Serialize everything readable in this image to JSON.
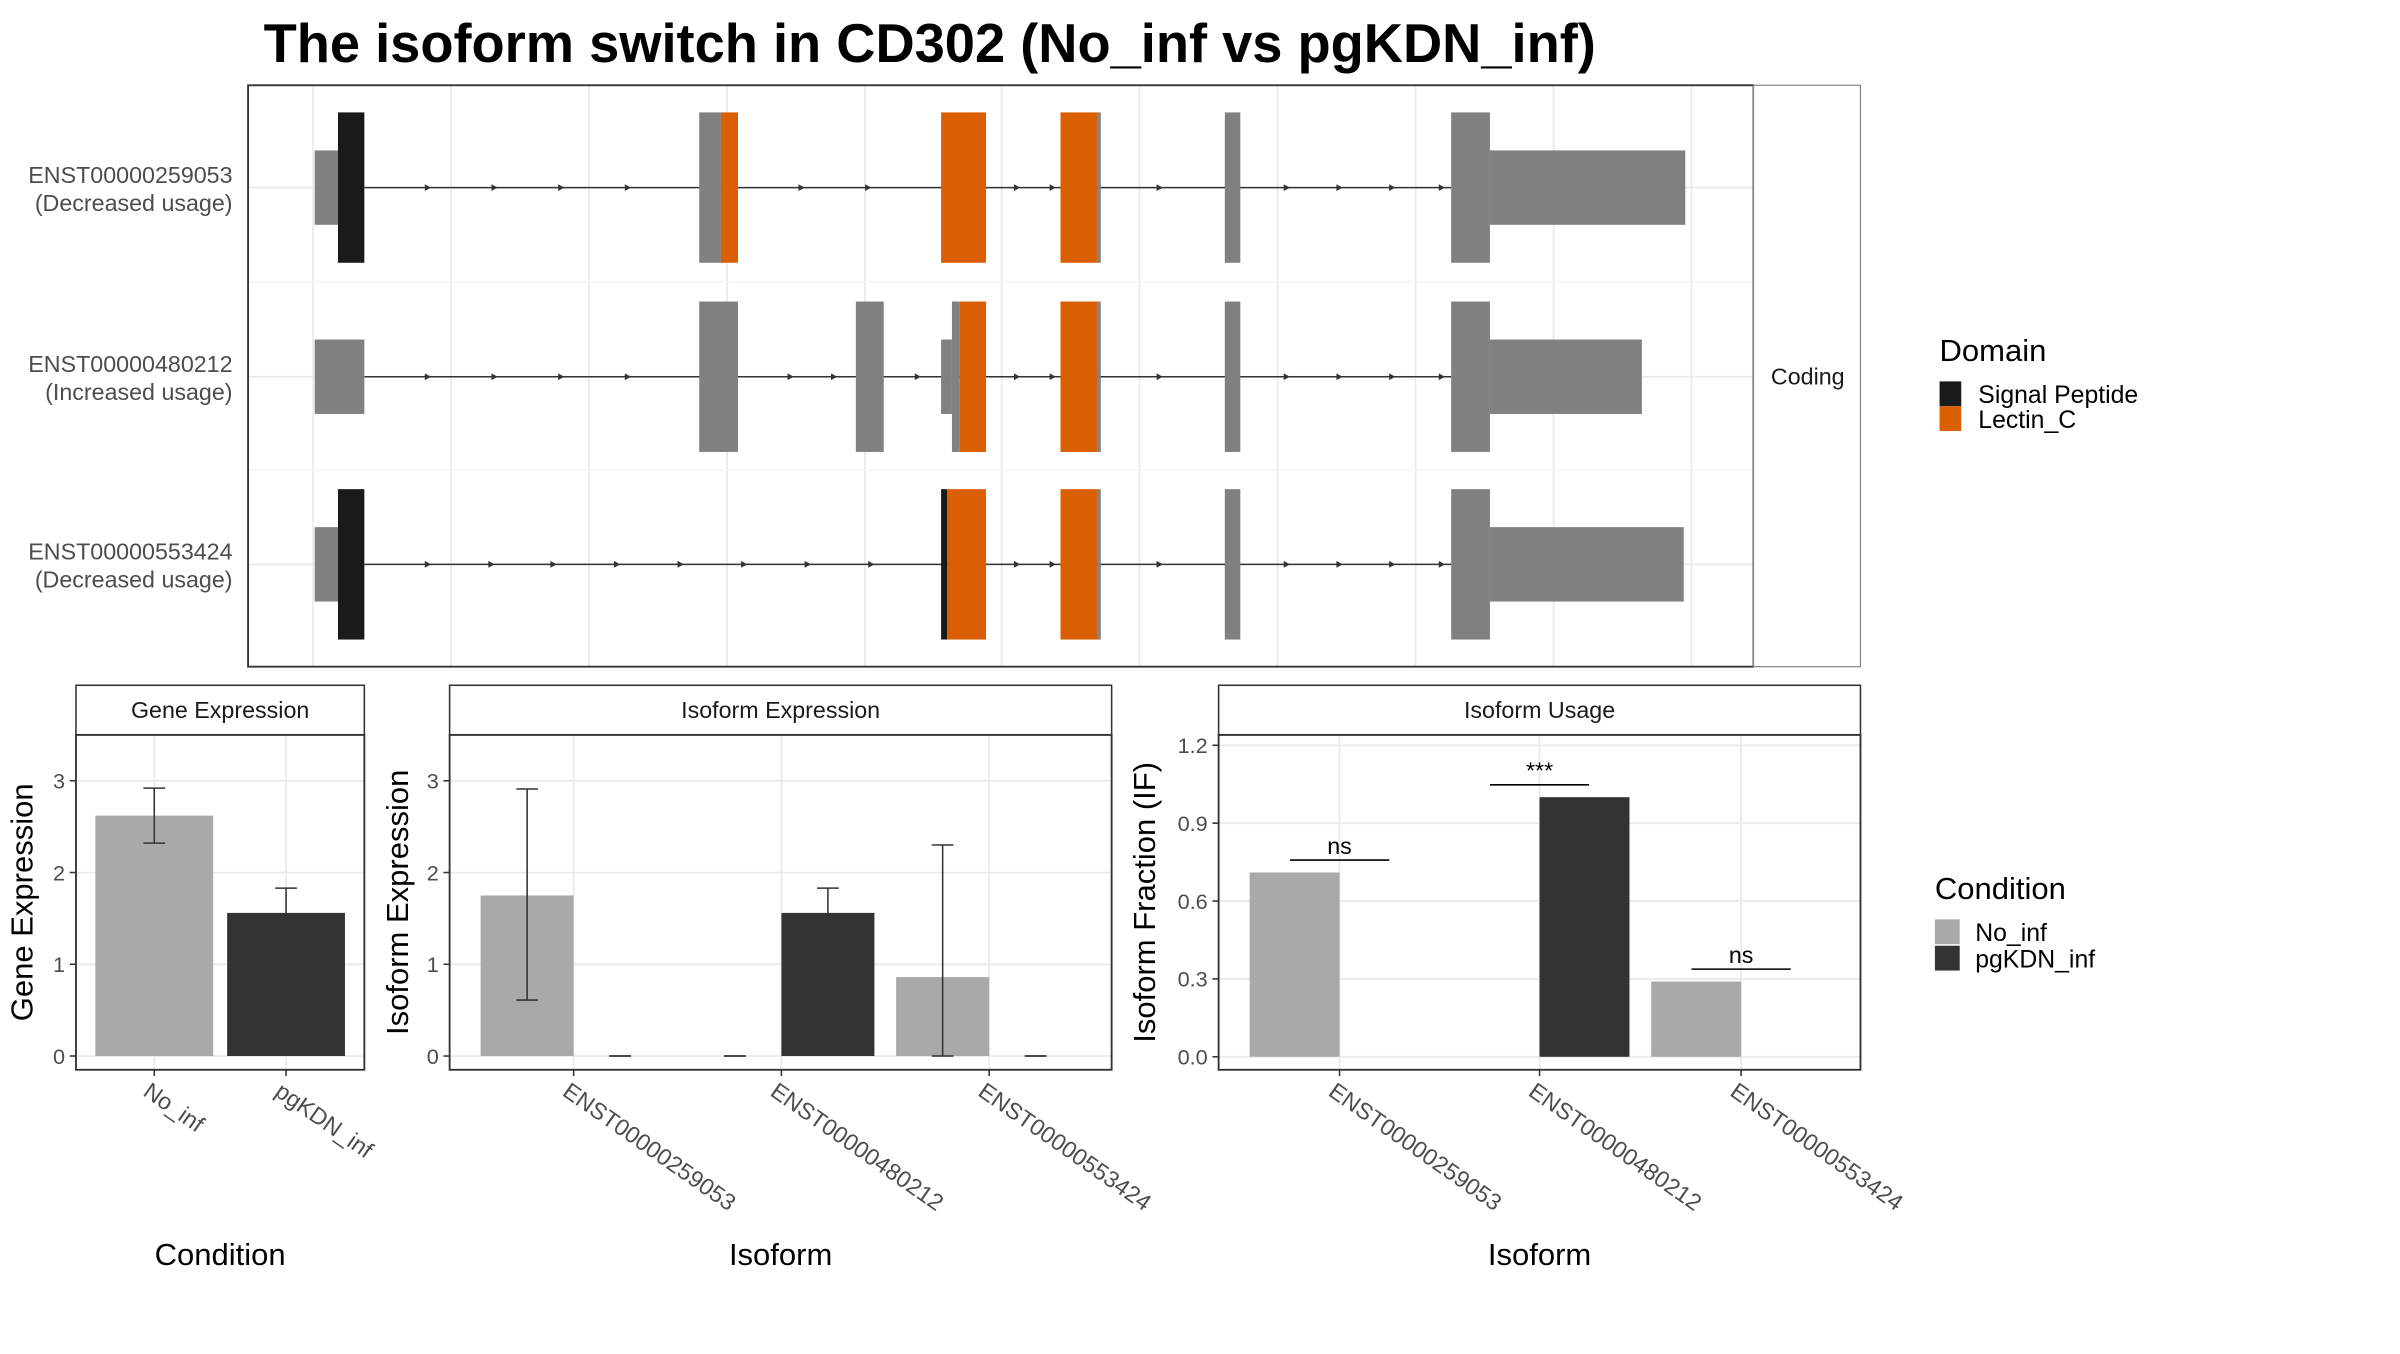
{
  "title": "The isoform switch in CD302 (No_inf vs pgKDN_inf)",
  "colors": {
    "utr": "#808080",
    "signal_peptide": "#1a1a1a",
    "lectin_c": "#d95f02",
    "no_inf": "#a9a9a9",
    "pgkdn_inf": "#333333",
    "grid": "#ebebeb",
    "strip": "#ffffff"
  },
  "chart_data": [
    {
      "type": "gene-structure",
      "facet_label": "Coding",
      "isoforms": [
        {
          "id": "ENST00000259053",
          "usage": "(Decreased usage)"
        },
        {
          "id": "ENST00000480212",
          "usage": "(Increased usage)"
        },
        {
          "id": "ENST00000553424",
          "usage": "(Decreased usage)"
        }
      ],
      "legend": {
        "title": "Domain",
        "items": [
          "Signal Peptide",
          "Lectin_C"
        ]
      }
    },
    {
      "type": "bar",
      "title": "Gene Expression",
      "xlabel": "Condition",
      "ylabel": "Gene Expression",
      "categories": [
        "No_inf",
        "pgKDN_inf"
      ],
      "values": [
        2.62,
        1.56
      ],
      "errors": [
        [
          2.32,
          2.92
        ],
        [
          1.29,
          1.83
        ]
      ],
      "ylim": [
        -0.15,
        3.5
      ],
      "yticks": [
        "0",
        "1",
        "2",
        "3"
      ]
    },
    {
      "type": "bar",
      "title": "Isoform Expression",
      "xlabel": "Isoform",
      "ylabel": "Isoform Expression",
      "categories": [
        "ENST00000259053",
        "ENST00000480212",
        "ENST00000553424"
      ],
      "series": [
        {
          "name": "No_inf",
          "values": [
            1.75,
            0.0,
            0.86
          ],
          "errors": [
            [
              0.61,
              2.91
            ],
            [
              0.0,
              0.0
            ],
            [
              0.0,
              2.3
            ]
          ]
        },
        {
          "name": "pgKDN_inf",
          "values": [
            0.0,
            1.56,
            0.0
          ],
          "errors": [
            [
              0.0,
              0.0
            ],
            [
              1.29,
              1.83
            ],
            [
              0.0,
              0.0
            ]
          ]
        }
      ],
      "ylim": [
        -0.15,
        3.5
      ],
      "yticks": [
        "0",
        "1",
        "2",
        "3"
      ]
    },
    {
      "type": "bar",
      "title": "Isoform Usage",
      "xlabel": "Isoform",
      "ylabel": "Isoform Fraction (IF)",
      "categories": [
        "ENST00000259053",
        "ENST00000480212",
        "ENST00000553424"
      ],
      "series": [
        {
          "name": "No_inf",
          "values": [
            0.71,
            0.0,
            0.29
          ]
        },
        {
          "name": "pgKDN_inf",
          "values": [
            0.0,
            1.0,
            0.0
          ]
        }
      ],
      "significance": [
        "ns",
        "***",
        "ns"
      ],
      "ylim": [
        -0.05,
        1.24
      ],
      "yticks": [
        "0.0",
        "0.3",
        "0.6",
        "0.9",
        "1.2"
      ]
    }
  ],
  "condition_legend": {
    "title": "Condition",
    "items": [
      "No_inf",
      "pgKDN_inf"
    ]
  }
}
